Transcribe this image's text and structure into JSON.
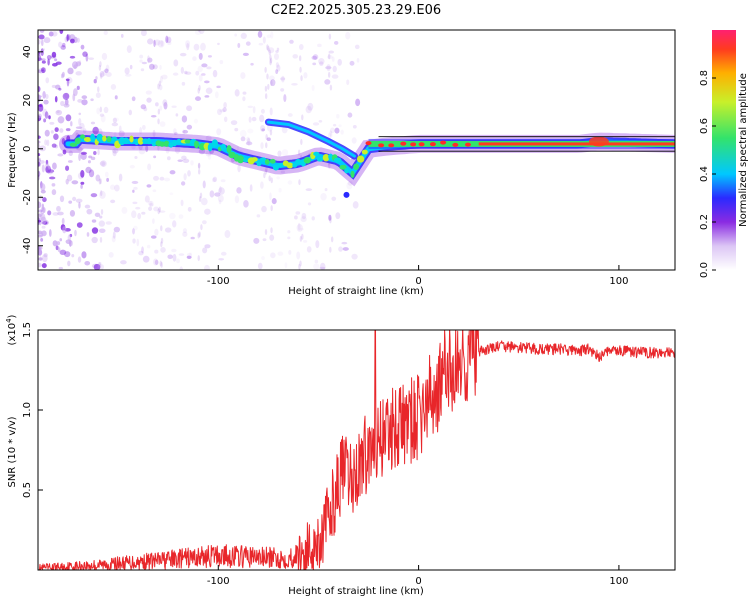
{
  "title": "C2E2.2025.305.23.29.E06",
  "chart_data": [
    {
      "type": "heatmap",
      "name": "spectrogram",
      "xlabel": "Height of straight line (km)",
      "ylabel": "Frequency (Hz)",
      "xlim": [
        -190,
        128
      ],
      "ylim": [
        -50,
        49
      ],
      "xticks": [
        "-100",
        "0",
        "100"
      ],
      "yticks": [
        "40",
        "20",
        "0",
        "-20",
        "-40"
      ],
      "ridge_track": [
        [
          -170,
          4
        ],
        [
          -150,
          3
        ],
        [
          -130,
          3
        ],
        [
          -110,
          2
        ],
        [
          -100,
          1
        ],
        [
          -90,
          -3
        ],
        [
          -80,
          -5
        ],
        [
          -70,
          -7
        ],
        [
          -60,
          -6
        ],
        [
          -50,
          -3
        ],
        [
          -40,
          -5
        ],
        [
          -33,
          -10
        ],
        [
          -25,
          0
        ],
        [
          -15,
          1
        ],
        [
          0,
          2
        ],
        [
          20,
          2
        ],
        [
          50,
          2
        ],
        [
          80,
          2
        ],
        [
          90,
          3
        ],
        [
          128,
          2
        ]
      ],
      "colorbar": {
        "label": "Normalized spectral amplitude",
        "ticks": [
          "0.0",
          "0.2",
          "0.4",
          "0.6",
          "0.8"
        ],
        "range": [
          0,
          1
        ]
      }
    },
    {
      "type": "line",
      "name": "snr",
      "xlabel": "Height of straight line (km)",
      "ylabel": "SNR (10 * v/v)",
      "multiplier": "(x10",
      "multiplier_exp": "4",
      "xlim": [
        -190,
        128
      ],
      "ylim": [
        0,
        1.5
      ],
      "xticks": [
        "-100",
        "0",
        "100"
      ],
      "yticks": [
        "1.5",
        "1.0",
        "0.5"
      ],
      "color": "#e8262a",
      "series": [
        {
          "name": "SNR",
          "x": [
            -190,
            -160,
            -130,
            -100,
            -80,
            -65,
            -55,
            -48,
            -42,
            -38,
            -33,
            -28,
            -22,
            -18,
            -12,
            -5,
            0,
            5,
            10,
            15,
            20,
            25,
            30,
            35,
            40,
            50,
            60,
            70,
            80,
            85,
            90,
            95,
            100,
            110,
            120,
            128
          ],
          "y": [
            0.01,
            0.03,
            0.06,
            0.09,
            0.08,
            0.07,
            0.12,
            0.22,
            0.45,
            0.62,
            0.55,
            0.7,
            0.78,
            0.85,
            0.9,
            0.92,
            0.95,
            1.05,
            1.15,
            1.25,
            1.3,
            1.34,
            1.36,
            1.38,
            1.4,
            1.39,
            1.38,
            1.38,
            1.37,
            1.38,
            1.33,
            1.38,
            1.37,
            1.36,
            1.36,
            1.35
          ]
        }
      ]
    }
  ]
}
